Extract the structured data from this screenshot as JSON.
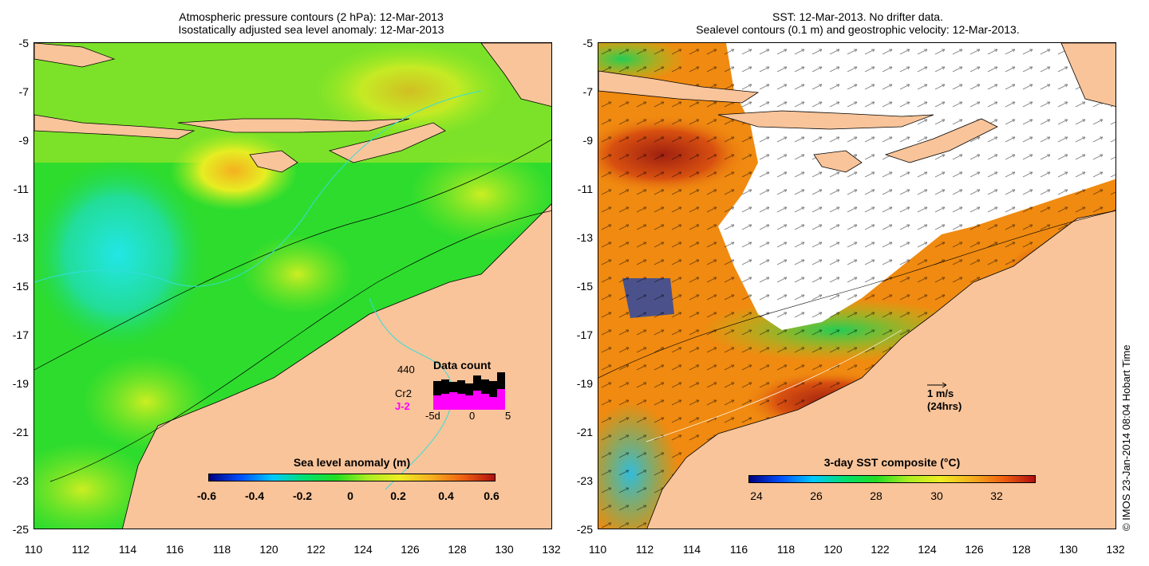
{
  "left_map": {
    "title_line1": "Atmospheric pressure contours (2 hPa): 12-Mar-2013",
    "title_line2": "Isostatically adjusted sea level anomaly: 12-Mar-2013",
    "colorbar_title": "Sea level anomaly (m)",
    "colorbar_ticks": [
      "-0.6",
      "-0.4",
      "-0.2",
      "0",
      "0.2",
      "0.4",
      "0.6"
    ],
    "inset": {
      "title": "Data count",
      "max_label": "440",
      "label_cr2": "Cr2",
      "label_j2": "J-2",
      "x_ticks": [
        "-5d",
        "0",
        "5"
      ],
      "cr2_color": "#000000",
      "j2_color": "#ff00ff"
    }
  },
  "right_map": {
    "title_line1": "SST: 12-Mar-2013. No drifter data.",
    "title_line2": "Sealevel contours (0.1 m) and geostrophic velocity: 12-Mar-2013.",
    "colorbar_title": "3-day SST composite (°C)",
    "colorbar_ticks": [
      "24",
      "26",
      "28",
      "30",
      "32"
    ],
    "velocity_scale_label": "1 m/s",
    "velocity_scale_sub": "(24hrs)"
  },
  "axes": {
    "lat_ticks": [
      "-5",
      "-7",
      "-9",
      "-11",
      "-13",
      "-15",
      "-17",
      "-19",
      "-21",
      "-23",
      "-25"
    ],
    "lon_ticks": [
      "110",
      "112",
      "114",
      "116",
      "118",
      "120",
      "122",
      "124",
      "126",
      "128",
      "130",
      "132"
    ]
  },
  "credit": "© IMOS 23-Jan-2014 08:04 Hobart Time",
  "colors": {
    "land": "#f9c49a",
    "sla_green": "#22dd22",
    "sst_orange": "#f08a10",
    "sst_white_gap": "#ffffff"
  }
}
